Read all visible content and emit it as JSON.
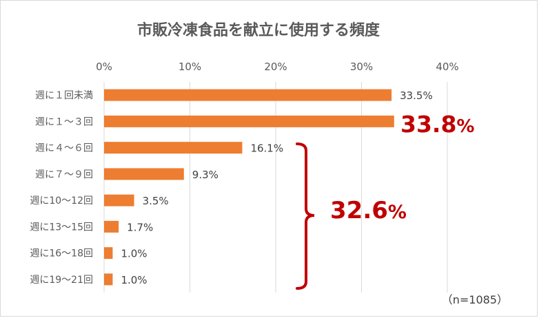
{
  "chart_data": {
    "type": "bar",
    "orientation": "horizontal",
    "title": "市販冷凍食品を献立に使用する頻度",
    "xlim": [
      0,
      40
    ],
    "x_ticks": [
      "0%",
      "10%",
      "20%",
      "30%",
      "40%"
    ],
    "grid": true,
    "categories": [
      "週に１回未満",
      "週に１～３回",
      "週に４～６回",
      "週に７～９回",
      "週に10～12回",
      "週に13～15回",
      "週に16～18回",
      "週に19～21回"
    ],
    "values": [
      33.5,
      33.8,
      16.1,
      9.3,
      3.5,
      1.7,
      1.0,
      1.0
    ],
    "value_labels": [
      "33.5%",
      "",
      "16.1%",
      "9.3%",
      "3.5%",
      "1.7%",
      "1.0%",
      "1.0%"
    ],
    "bar_color": "#ed7d31",
    "annotations": {
      "highlight_value": "33.8",
      "highlight_unit": "%",
      "bracket_value": "32.6",
      "bracket_unit": "%",
      "accent_color": "#c00000"
    },
    "sample_note": "（n=1085）"
  }
}
